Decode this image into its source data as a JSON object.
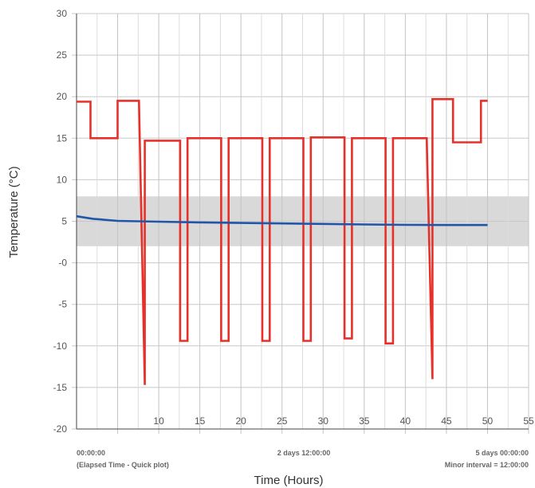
{
  "chart_data": {
    "type": "line",
    "xlabel": "Time (Hours)",
    "ylabel": "Temperature (°C)",
    "xlim": [
      0,
      55
    ],
    "ylim": [
      -20,
      30
    ],
    "x_ticks": [
      10,
      15,
      20,
      25,
      30,
      35,
      40,
      45,
      50,
      55
    ],
    "x_minor_grid_step": 2.5,
    "y_ticks": [
      {
        "value": 30,
        "label": "30"
      },
      {
        "value": 25,
        "label": "25"
      },
      {
        "value": 20,
        "label": "20"
      },
      {
        "value": 15,
        "label": "15"
      },
      {
        "value": 10,
        "label": "10"
      },
      {
        "value": 5,
        "label": "5"
      },
      {
        "value": 0,
        "label": "-0"
      },
      {
        "value": -5,
        "label": "-5"
      },
      {
        "value": -10,
        "label": "-10"
      },
      {
        "value": -15,
        "label": "-15"
      },
      {
        "value": -20,
        "label": "-20"
      }
    ],
    "grid": true,
    "band": {
      "y_from": 2,
      "y_to": 8,
      "color": "#d9d9d9"
    },
    "series": [
      {
        "color": "#e8302a",
        "points": [
          [
            0,
            19.4
          ],
          [
            1.7,
            19.4
          ],
          [
            1.7,
            15.0
          ],
          [
            5,
            15.0
          ],
          [
            5,
            19.5
          ],
          [
            7.6,
            19.5
          ],
          [
            8.3,
            -14.7
          ],
          [
            8.3,
            14.7
          ],
          [
            12.6,
            14.7
          ],
          [
            12.6,
            -9.4
          ],
          [
            13.5,
            -9.4
          ],
          [
            13.5,
            15.0
          ],
          [
            17.6,
            15.0
          ],
          [
            17.6,
            -9.4
          ],
          [
            18.5,
            -9.4
          ],
          [
            18.5,
            15.0
          ],
          [
            22.6,
            15.0
          ],
          [
            22.6,
            -9.4
          ],
          [
            23.5,
            -9.4
          ],
          [
            23.5,
            15.0
          ],
          [
            27.6,
            15.0
          ],
          [
            27.6,
            -9.4
          ],
          [
            28.5,
            -9.4
          ],
          [
            28.5,
            15.1
          ],
          [
            32.6,
            15.1
          ],
          [
            32.6,
            -9.1
          ],
          [
            33.5,
            -9.1
          ],
          [
            33.5,
            15.0
          ],
          [
            37.6,
            15.0
          ],
          [
            37.6,
            -9.7
          ],
          [
            38.5,
            -9.7
          ],
          [
            38.5,
            15.0
          ],
          [
            42.6,
            15.0
          ],
          [
            43.3,
            -14.0
          ],
          [
            43.3,
            19.7
          ],
          [
            45.8,
            19.7
          ],
          [
            45.8,
            14.5
          ],
          [
            49.2,
            14.5
          ],
          [
            49.2,
            19.5
          ],
          [
            50,
            19.5
          ]
        ]
      },
      {
        "color": "#2155a8",
        "points": [
          [
            0,
            5.6
          ],
          [
            2,
            5.3
          ],
          [
            5,
            5.05
          ],
          [
            10,
            4.95
          ],
          [
            15,
            4.87
          ],
          [
            20,
            4.8
          ],
          [
            25,
            4.74
          ],
          [
            30,
            4.68
          ],
          [
            35,
            4.62
          ],
          [
            40,
            4.57
          ],
          [
            45,
            4.55
          ],
          [
            50,
            4.55
          ]
        ]
      }
    ],
    "footer": {
      "left_time": "00:00:00",
      "left_note": "(Elapsed Time - Quick plot)",
      "center_time": "2 days  12:00:00",
      "right_time": "5 days  00:00:00",
      "right_note": "Minor interval = 12:00:00"
    }
  }
}
